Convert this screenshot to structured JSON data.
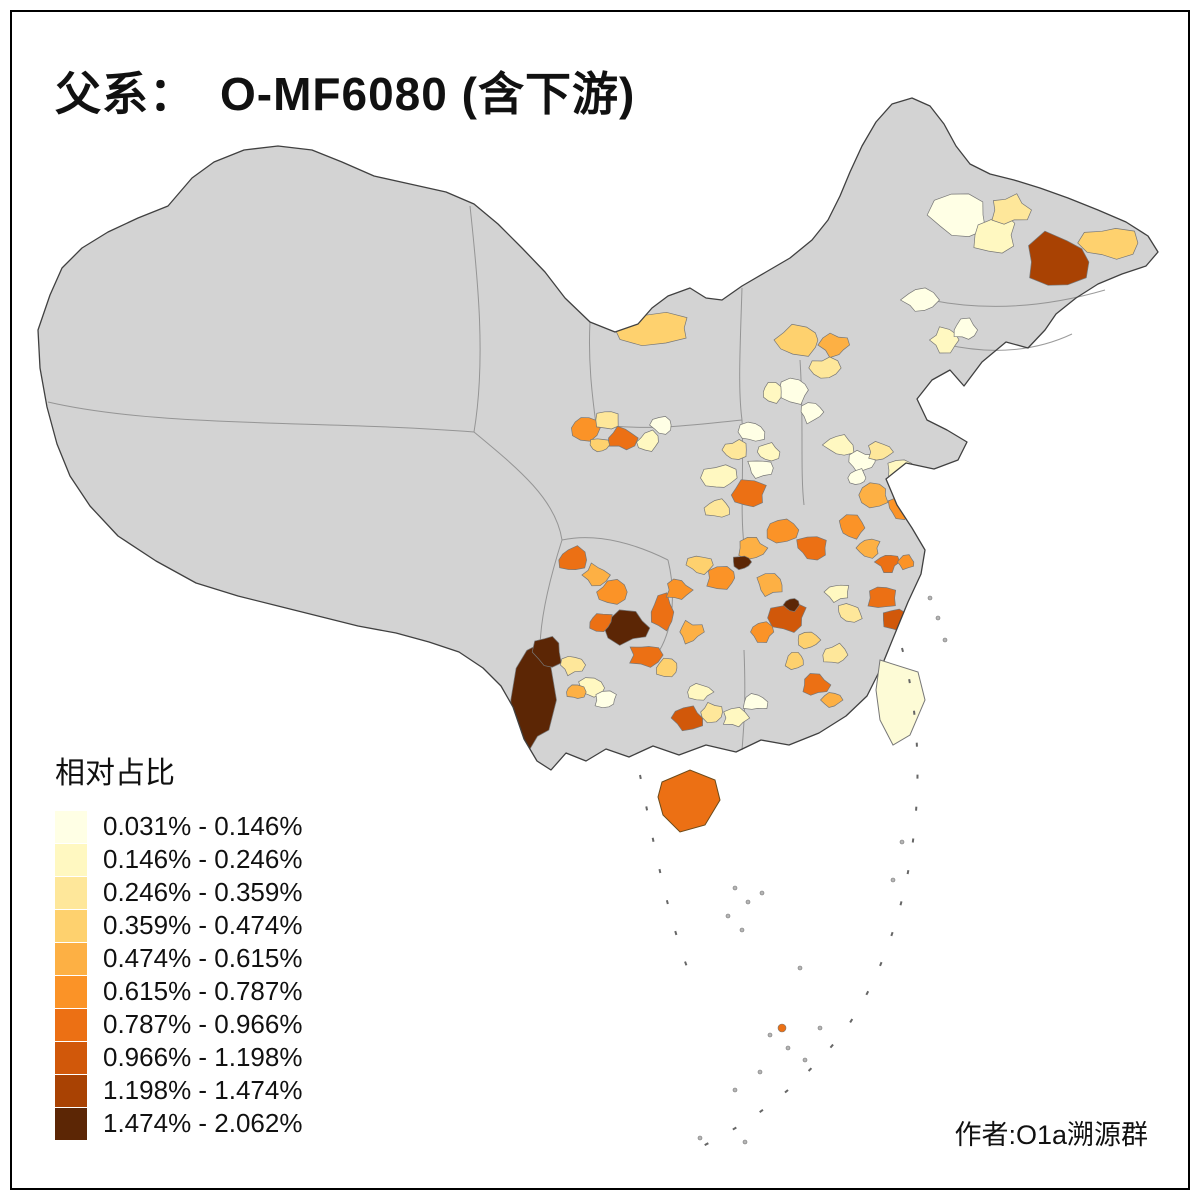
{
  "title": "父系：　O-MF6080 (含下游)",
  "legend": {
    "title": "相对占比",
    "items": [
      {
        "label": "0.031% - 0.146%",
        "color": "#FFFFE5"
      },
      {
        "label": "0.146% - 0.246%",
        "color": "#FFF8C1"
      },
      {
        "label": "0.246% - 0.359%",
        "color": "#FEE79A"
      },
      {
        "label": "0.359% - 0.474%",
        "color": "#FED16E"
      },
      {
        "label": "0.474% - 0.615%",
        "color": "#FDB044"
      },
      {
        "label": "0.615% - 0.787%",
        "color": "#FB9327"
      },
      {
        "label": "0.787% - 0.966%",
        "color": "#EC7014"
      },
      {
        "label": "0.966% - 1.198%",
        "color": "#D1580A"
      },
      {
        "label": "1.198% - 1.474%",
        "color": "#A94203"
      },
      {
        "label": "1.474% - 2.062%",
        "color": "#5C2605"
      }
    ]
  },
  "author": "作者:O1a溯源群",
  "map": {
    "base_color": "#D3D3D3",
    "coast_color": "#404040",
    "province_line_color": "#8A8A8A",
    "background": "#FFFFFF"
  }
}
